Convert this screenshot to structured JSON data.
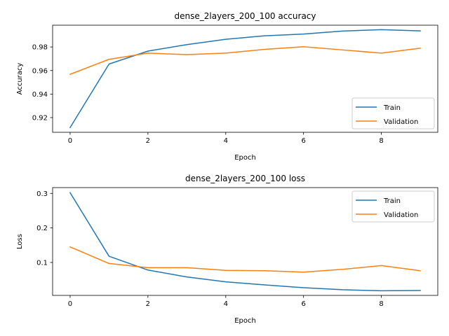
{
  "chart_data": [
    {
      "type": "line",
      "title": "dense_2layers_200_100 accuracy",
      "xlabel": "Epoch",
      "ylabel": "Accuracy",
      "xlim": [
        -0.45,
        9.45
      ],
      "ylim": [
        0.9075,
        0.9985
      ],
      "xticks": [
        0,
        2,
        4,
        6,
        8
      ],
      "yticks": [
        0.92,
        0.94,
        0.96,
        0.98
      ],
      "xtick_labels": [
        "0",
        "2",
        "4",
        "6",
        "8"
      ],
      "ytick_labels": [
        "0.92",
        "0.94",
        "0.96",
        "0.98"
      ],
      "legend_position": "lower-right",
      "x": [
        0,
        1,
        2,
        3,
        4,
        5,
        6,
        7,
        8,
        9
      ],
      "series": [
        {
          "name": "Train",
          "color": "#1f77b4",
          "values": [
            0.9115,
            0.9655,
            0.9765,
            0.982,
            0.9865,
            0.9895,
            0.991,
            0.9935,
            0.9947,
            0.9937
          ]
        },
        {
          "name": "Validation",
          "color": "#ff7f0e",
          "values": [
            0.9568,
            0.9695,
            0.9748,
            0.9735,
            0.9748,
            0.978,
            0.9802,
            0.9775,
            0.9748,
            0.979
          ]
        }
      ]
    },
    {
      "type": "line",
      "title": "dense_2layers_200_100 loss",
      "xlabel": "Epoch",
      "ylabel": "Loss",
      "xlim": [
        -0.45,
        9.45
      ],
      "ylim": [
        0.0046,
        0.3168
      ],
      "xticks": [
        0,
        2,
        4,
        6,
        8
      ],
      "yticks": [
        0.1,
        0.2,
        0.3
      ],
      "xtick_labels": [
        "0",
        "2",
        "4",
        "6",
        "8"
      ],
      "ytick_labels": [
        "0.1",
        "0.2",
        "0.3"
      ],
      "legend_position": "upper-right",
      "x": [
        0,
        1,
        2,
        3,
        4,
        5,
        6,
        7,
        8,
        9
      ],
      "series": [
        {
          "name": "Train",
          "color": "#1f77b4",
          "values": [
            0.302,
            0.118,
            0.078,
            0.058,
            0.044,
            0.035,
            0.027,
            0.021,
            0.018,
            0.0188
          ]
        },
        {
          "name": "Validation",
          "color": "#ff7f0e",
          "values": [
            0.145,
            0.097,
            0.085,
            0.085,
            0.077,
            0.076,
            0.072,
            0.08,
            0.091,
            0.076
          ]
        }
      ]
    }
  ]
}
